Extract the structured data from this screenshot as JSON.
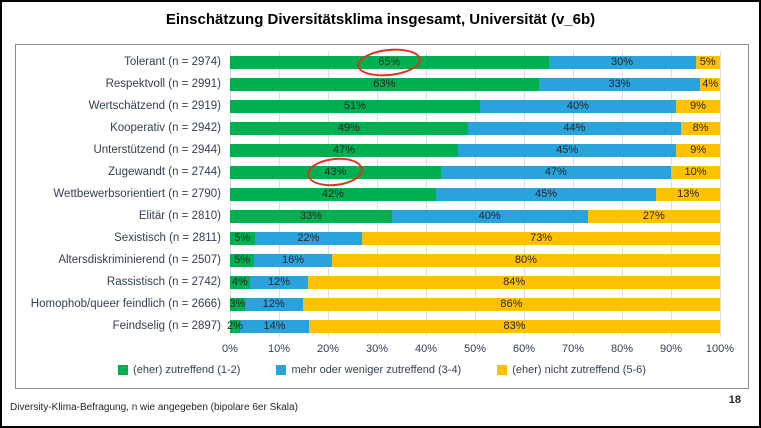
{
  "title": "Einschätzung Diversitätsklima insgesamt, Universität (v_6b)",
  "footer": {
    "source_note": "Diversity-Klima-Befragung, n wie angegeben (bipolare 6er Skala)",
    "page_number": "18"
  },
  "colors": {
    "green": "#00B050",
    "blue": "#29A3DC",
    "yellow": "#FFC000",
    "annotation_red": "#E0301E",
    "gridline": "#DCDDDF"
  },
  "chart_data": {
    "type": "bar",
    "orientation": "horizontal",
    "stacked": true,
    "title": "Einschätzung Diversitätsklima insgesamt, Universität (v_6b)",
    "categories": [
      "Tolerant (n = 2974)",
      "Respektvoll (n = 2991)",
      "Wertschätzend (n = 2919)",
      "Kooperativ (n = 2942)",
      "Unterstützend (n = 2944)",
      "Zugewandt (n = 2744)",
      "Wettbewerbsorientiert (n = 2790)",
      "Elitär (n = 2810)",
      "Sexistisch (n = 2811)",
      "Altersdiskriminierend (n = 2507)",
      "Rassistisch (n = 2742)",
      "Homophob/queer feindlich (n = 2666)",
      "Feindselig (n = 2897)"
    ],
    "series": [
      {
        "name": "(eher) zutreffend (1-2)",
        "color": "#00B050",
        "values": [
          65,
          63,
          51,
          49,
          47,
          43,
          42,
          33,
          5,
          5,
          4,
          3,
          2
        ]
      },
      {
        "name": "mehr oder weniger zutreffend (3-4)",
        "color": "#29A3DC",
        "values": [
          30,
          33,
          40,
          44,
          45,
          47,
          45,
          40,
          22,
          16,
          12,
          12,
          14
        ]
      },
      {
        "name": "(eher) nicht zutreffend (5-6)",
        "color": "#FFC000",
        "values": [
          5,
          4,
          9,
          8,
          9,
          10,
          13,
          27,
          73,
          80,
          84,
          86,
          83
        ]
      }
    ],
    "x_ticks": [
      "0%",
      "10%",
      "20%",
      "30%",
      "40%",
      "50%",
      "60%",
      "70%",
      "80%",
      "90%",
      "100%"
    ],
    "xlim": [
      0,
      100
    ],
    "grid": true,
    "legend_position": "bottom",
    "annotations": [
      {
        "type": "ellipse",
        "row": 0,
        "series": 0,
        "label": "65%",
        "width": 64,
        "height": 27,
        "rotate": -6
      },
      {
        "type": "ellipse",
        "row": 5,
        "series": 0,
        "label": "43%",
        "width": 56,
        "height": 28,
        "rotate": -6
      }
    ]
  }
}
